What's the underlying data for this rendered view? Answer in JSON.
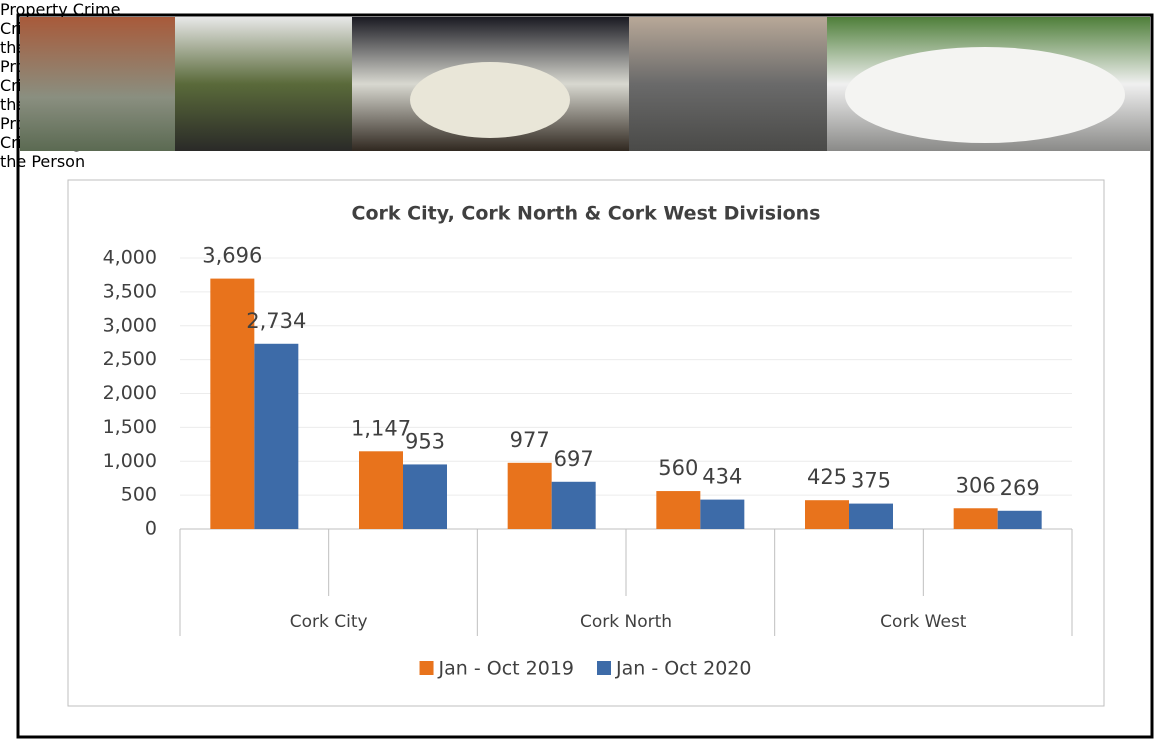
{
  "chart_data": {
    "type": "bar",
    "title": "Cork City, Cork North & Cork West Divisions",
    "categories": [
      "Property Crime",
      "Crimes Against the Person",
      "Property Crime",
      "Crimes Against the Person",
      "Property Crime",
      "Crimes Against the Person"
    ],
    "groups": [
      "Cork City",
      "Cork North",
      "Cork West"
    ],
    "series": [
      {
        "name": "Jan - Oct 2019",
        "color": "#e8731c",
        "values": [
          3696,
          1147,
          977,
          560,
          425,
          306
        ],
        "value_labels": [
          "3,696",
          "1,147",
          "977",
          "560",
          "425",
          "306"
        ]
      },
      {
        "name": "Jan - Oct 2020",
        "color": "#3d6ba8",
        "values": [
          2734,
          953,
          697,
          434,
          375,
          269
        ],
        "value_labels": [
          "2,734",
          "953",
          "697",
          "434",
          "375",
          "269"
        ]
      }
    ],
    "ylim": [
      0,
      4000
    ],
    "yticks": [
      0,
      500,
      {
        "value": 1000,
        "label": "1,000"
      },
      {
        "value": 1500,
        "label": "1,500"
      },
      {
        "value": 2000,
        "label": "2,000"
      },
      {
        "value": 2500,
        "label": "2,500"
      },
      {
        "value": 3000,
        "label": "3,000"
      },
      {
        "value": 3500,
        "label": "3,500"
      },
      {
        "value": 4000,
        "label": "4,000"
      }
    ],
    "grid": true,
    "legend": "bottom"
  }
}
